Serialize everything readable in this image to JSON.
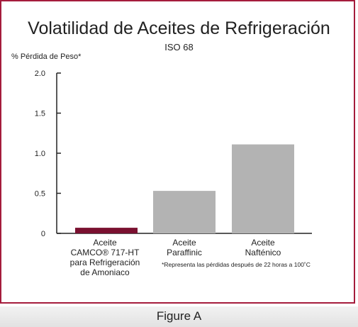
{
  "figure_caption": "Figure A",
  "colors": {
    "border": "#a51c3c",
    "highlight_bar": "#7a1030",
    "other_bar": "#b3b3b3"
  },
  "chart_data": {
    "type": "bar",
    "title": "Volatilidad de Aceites de Refrigeración",
    "subtitle": "ISO 68",
    "ylabel": "% Pérdida de Peso*",
    "xlabel": "",
    "ylim": [
      0,
      2.0
    ],
    "yticks": [
      "0",
      "0.5",
      "1.0",
      "1.5",
      "2.0"
    ],
    "ytick_values": [
      0,
      0.5,
      1.0,
      1.5,
      2.0
    ],
    "grid": false,
    "categories": [
      [
        "Aceite",
        "CAMCO® 717-HT",
        "para Refrigeración",
        "de Amoniaco"
      ],
      [
        "Aceite",
        "Paraffinic"
      ],
      [
        "Aceite",
        "Nafténico"
      ]
    ],
    "values": [
      0.07,
      0.53,
      1.11
    ],
    "footnote": "*Representa las pérdidas después de 22 horas a 100˚C"
  }
}
